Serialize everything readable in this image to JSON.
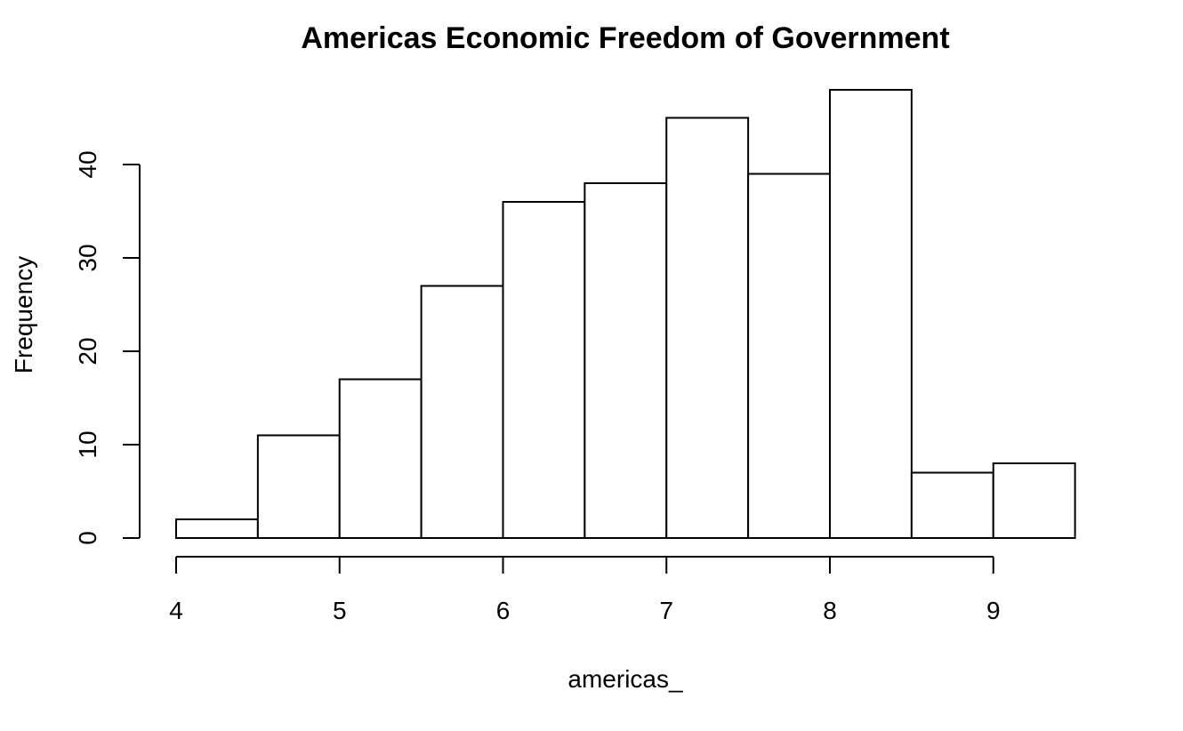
{
  "chart_data": {
    "type": "bar",
    "title": "Americas Economic Freedom of Government",
    "xlabel": "americas_",
    "ylabel": "Frequency",
    "bins": [
      {
        "x0": 4.0,
        "x1": 4.5,
        "count": 2
      },
      {
        "x0": 4.5,
        "x1": 5.0,
        "count": 11
      },
      {
        "x0": 5.0,
        "x1": 5.5,
        "count": 17
      },
      {
        "x0": 5.5,
        "x1": 6.0,
        "count": 27
      },
      {
        "x0": 6.0,
        "x1": 6.5,
        "count": 36
      },
      {
        "x0": 6.5,
        "x1": 7.0,
        "count": 38
      },
      {
        "x0": 7.0,
        "x1": 7.5,
        "count": 45
      },
      {
        "x0": 7.5,
        "x1": 8.0,
        "count": 39
      },
      {
        "x0": 8.0,
        "x1": 8.5,
        "count": 48
      },
      {
        "x0": 8.5,
        "x1": 9.0,
        "count": 7
      },
      {
        "x0": 9.0,
        "x1": 9.5,
        "count": 8
      }
    ],
    "x_ticks": [
      "4",
      "5",
      "6",
      "7",
      "8",
      "9"
    ],
    "y_ticks": [
      "0",
      "10",
      "20",
      "30",
      "40"
    ],
    "xlim": [
      4,
      9.5
    ],
    "ylim": [
      0,
      48
    ],
    "grid": false,
    "bar_fill": "#ffffff",
    "bar_stroke": "#000000"
  }
}
